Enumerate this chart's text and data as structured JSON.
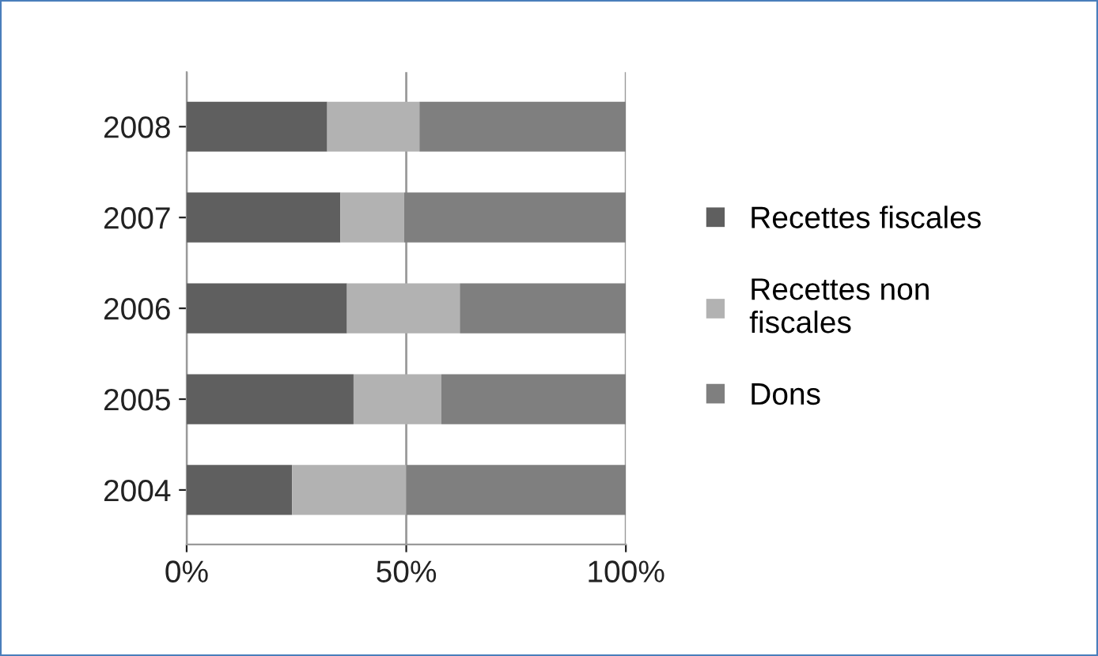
{
  "chart_data": {
    "type": "bar",
    "orientation": "horizontal",
    "stacked": true,
    "categories": [
      "2008",
      "2007",
      "2006",
      "2005",
      "2004"
    ],
    "series": [
      {
        "name": "Recettes fiscales",
        "color": "#5f5f5f",
        "values": [
          32,
          35,
          36.5,
          38,
          24
        ]
      },
      {
        "name": "Recettes non fiscales",
        "color": "#b2b2b2",
        "values": [
          21,
          14.5,
          25.7,
          20,
          26
        ]
      },
      {
        "name": "Dons",
        "color": "#7f7f7f",
        "values": [
          47,
          50.5,
          37.8,
          42,
          50
        ]
      }
    ],
    "xlim": [
      0,
      100
    ],
    "xticks": [
      {
        "value": 0,
        "label": "0%"
      },
      {
        "value": 50,
        "label": "50%"
      },
      {
        "value": 100,
        "label": "100%"
      }
    ],
    "grid": "x",
    "legend": "right"
  }
}
